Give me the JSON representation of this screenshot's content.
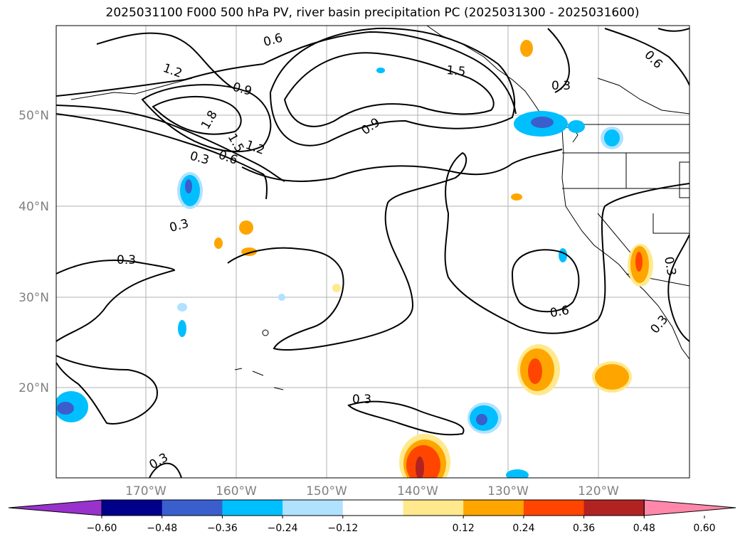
{
  "title": "2025031100 F000 500 hPa PV, river basin precipitation PC (2025031300 - 2025031600)",
  "lat_ticks": [
    "50°N",
    "40°N",
    "30°N",
    "20°N"
  ],
  "lon_ticks": [
    "170°W",
    "160°W",
    "150°W",
    "140°W",
    "130°W",
    "120°W"
  ],
  "contour_labels": [
    "1.2",
    "0.6",
    "0.9",
    "1.5",
    "0.9",
    "0.3",
    "1.8",
    "1.5",
    "1.2",
    "0.3",
    "0.6",
    "0.3",
    "0.3",
    "0.6",
    "0.3",
    "0.3",
    "0.3",
    "0.6",
    "0.3"
  ],
  "colorbar": {
    "ticks": [
      "−0.60",
      "−0.48",
      "−0.36",
      "−0.24",
      "−0.12",
      "0.12",
      "0.24",
      "0.36",
      "0.48",
      "0.60"
    ],
    "colors": [
      "#9932cc",
      "#00008b",
      "#3a5fcd",
      "#00bfff",
      "#b0e2ff",
      "#ffffff",
      "#ffe98c",
      "#ffa500",
      "#ff4500",
      "#b22222",
      "#ff88aa"
    ]
  },
  "colors": {
    "contour": "#000000",
    "grid": "#b0b0b0",
    "coast": "#000000"
  }
}
